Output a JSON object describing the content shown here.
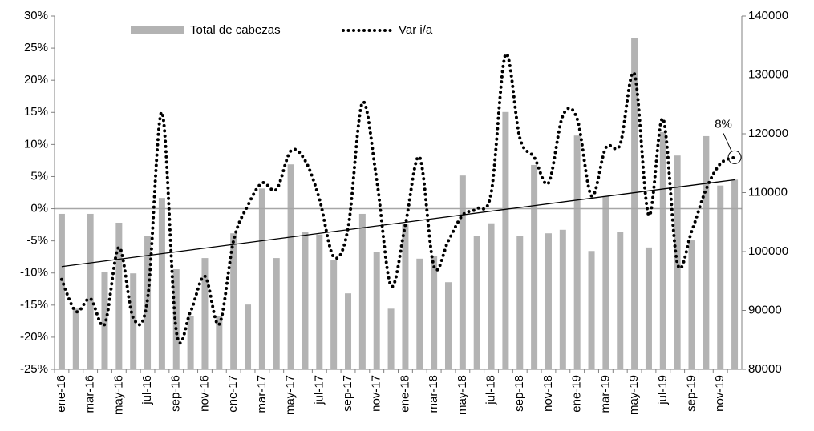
{
  "chart_data": {
    "type": "bar_line",
    "categories": [
      "ene-16",
      null,
      "mar-16",
      null,
      "may-16",
      null,
      "jul-16",
      null,
      "sep-16",
      null,
      "nov-16",
      null,
      "ene-17",
      null,
      "mar-17",
      null,
      "may-17",
      null,
      "jul-17",
      null,
      "sep-17",
      null,
      "nov-17",
      null,
      "ene-18",
      null,
      "mar-18",
      null,
      "may-18",
      null,
      "jul-18",
      null,
      "sep-18",
      null,
      "nov-18",
      null,
      "ene-19",
      null,
      "mar-19",
      null,
      "may-19",
      null,
      "jul-19",
      null,
      "sep-19",
      null,
      "nov-19",
      null
    ],
    "series": [
      {
        "name": "Total de cabezas",
        "type": "bar",
        "axis": "y2",
        "color": "#b3b3b3",
        "values": [
          106400,
          90300,
          106400,
          96600,
          104900,
          96300,
          102700,
          109100,
          97000,
          89000,
          98900,
          89000,
          103100,
          91000,
          110700,
          98900,
          114800,
          103300,
          102900,
          98500,
          92900,
          106400,
          99900,
          90300,
          104600,
          98800,
          99200,
          94800,
          112900,
          102600,
          104800,
          123700,
          102700,
          114700,
          103100,
          103700,
          119700,
          100100,
          109400,
          103300,
          136200,
          100700,
          120300,
          116300,
          101900,
          119600,
          111200,
          112200
        ]
      },
      {
        "name": "Var i/a",
        "type": "line",
        "axis": "y",
        "color": "#000000",
        "values": [
          -11,
          -16,
          -14,
          -18,
          -6,
          -17,
          -14,
          15,
          -19,
          -16,
          -10.5,
          -18,
          -5,
          0.5,
          4,
          3,
          9,
          7.5,
          1.5,
          -7.5,
          -3,
          16.5,
          4.5,
          -12,
          -2.5,
          8,
          -9,
          -5,
          -1,
          0,
          2.5,
          24,
          11,
          8,
          4,
          14.5,
          14,
          2,
          9.5,
          10,
          21,
          -1,
          14,
          -8.5,
          -3.5,
          3,
          7,
          8
        ]
      }
    ],
    "trend": [
      -9,
      4.5
    ],
    "annotation": "8%",
    "ylim": [
      -25,
      30
    ],
    "yticks": [
      {
        "value": -25,
        "label": "-25%"
      },
      {
        "value": -20,
        "label": "-20%"
      },
      {
        "value": -15,
        "label": "-15%"
      },
      {
        "value": -10,
        "label": "-10%"
      },
      {
        "value": -5,
        "label": "-5%"
      },
      {
        "value": 0,
        "label": "0%"
      },
      {
        "value": 5,
        "label": "5%"
      },
      {
        "value": 10,
        "label": "10%"
      },
      {
        "value": 15,
        "label": "15%"
      },
      {
        "value": 20,
        "label": "20%"
      },
      {
        "value": 25,
        "label": "25%"
      },
      {
        "value": 30,
        "label": "30%"
      }
    ],
    "y2lim": [
      80000,
      140000
    ],
    "y2ticks": [
      80000,
      90000,
      100000,
      110000,
      120000,
      130000,
      140000
    ],
    "legend": "top"
  }
}
